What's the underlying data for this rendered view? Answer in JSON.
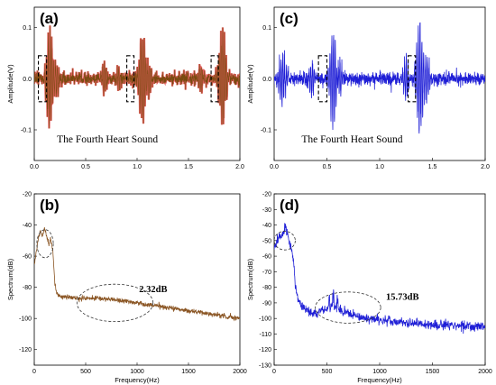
{
  "chart_data": [
    {
      "id": "a",
      "type": "line",
      "panel_label": "(a)",
      "xlabel": "",
      "ylabel": "Amplitude(V)",
      "xlim": [
        0,
        2.0
      ],
      "ylim": [
        -0.16,
        0.14
      ],
      "xticks": [
        0,
        0.5,
        1.0,
        1.5,
        2.0
      ],
      "xtick_labels": [
        "0.0",
        "0.5",
        "1.0",
        "1.5",
        "2.0"
      ],
      "yticks": [
        -0.1,
        0,
        0.1
      ],
      "ytick_labels": [
        "-0.1",
        "0.0",
        "0.1"
      ],
      "color": "#d81e1e",
      "color2": "#7a4a10",
      "annotation": "The Fourth Heart Sound",
      "beats": [
        {
          "t": 0.15,
          "amp": 0.115,
          "width": 0.04
        },
        {
          "t": 0.22,
          "amp": 0.035,
          "width": 0.025
        },
        {
          "t": 0.68,
          "amp": 0.045,
          "width": 0.025
        },
        {
          "t": 0.82,
          "amp": 0.03,
          "width": 0.02
        },
        {
          "t": 1.05,
          "amp": 0.1,
          "width": 0.04
        },
        {
          "t": 1.12,
          "amp": 0.035,
          "width": 0.025
        },
        {
          "t": 1.62,
          "amp": 0.035,
          "width": 0.025
        },
        {
          "t": 1.83,
          "amp": 0.115,
          "width": 0.04
        }
      ],
      "s4_boxes": [
        [
          0.04,
          0.12
        ],
        [
          0.9,
          0.97
        ],
        [
          1.72,
          1.79
        ]
      ]
    },
    {
      "id": "c",
      "type": "line",
      "panel_label": "(c)",
      "xlabel": "",
      "ylabel": "Amplitude(V)",
      "xlim": [
        0,
        2.0
      ],
      "ylim": [
        -0.16,
        0.14
      ],
      "xticks": [
        0,
        0.5,
        1.0,
        1.5,
        2.0
      ],
      "xtick_labels": [
        "0.0",
        "0.5",
        "1.0",
        "1.5",
        "2.0"
      ],
      "yticks": [
        -0.1,
        0,
        0.1
      ],
      "ytick_labels": [
        "-0.1",
        "0.0",
        "0.1"
      ],
      "color": "#1f1fd6",
      "annotation": "The Fourth Heart Sound",
      "beats": [
        {
          "t": 0.08,
          "amp": 0.06,
          "width": 0.04
        },
        {
          "t": 0.36,
          "amp": 0.045,
          "width": 0.025
        },
        {
          "t": 0.56,
          "amp": 0.115,
          "width": 0.04
        },
        {
          "t": 0.62,
          "amp": 0.05,
          "width": 0.03
        },
        {
          "t": 1.25,
          "amp": 0.05,
          "width": 0.03
        },
        {
          "t": 1.38,
          "amp": 0.125,
          "width": 0.04
        },
        {
          "t": 1.45,
          "amp": 0.05,
          "width": 0.03
        }
      ],
      "s4_boxes": [
        [
          0.42,
          0.5
        ],
        [
          1.27,
          1.34
        ]
      ]
    },
    {
      "id": "b",
      "type": "line",
      "panel_label": "(b)",
      "xlabel": "Frequency(Hz)",
      "ylabel": "Spectrum(dB)",
      "xlim": [
        0,
        2000
      ],
      "ylim": [
        -130,
        -20
      ],
      "xticks": [
        0,
        500,
        1000,
        1500,
        2000
      ],
      "xtick_labels": [
        "0",
        "500",
        "1000",
        "1500",
        "2000"
      ],
      "yticks": [
        -120,
        -100,
        -80,
        -60,
        -40,
        -20
      ],
      "ytick_labels": [
        "-120",
        "-100",
        "-80",
        "-60",
        "-40",
        "-20"
      ],
      "color": "#8a5523",
      "annotation": "2.32dB",
      "curve": [
        [
          0,
          -65
        ],
        [
          20,
          -58
        ],
        [
          40,
          -48
        ],
        [
          60,
          -44
        ],
        [
          80,
          -47
        ],
        [
          100,
          -41
        ],
        [
          120,
          -47
        ],
        [
          140,
          -52
        ],
        [
          160,
          -49
        ],
        [
          180,
          -56
        ],
        [
          200,
          -78
        ],
        [
          220,
          -84
        ],
        [
          260,
          -86
        ],
        [
          300,
          -86
        ],
        [
          400,
          -87
        ],
        [
          500,
          -87
        ],
        [
          600,
          -87
        ],
        [
          700,
          -87.5
        ],
        [
          800,
          -88
        ],
        [
          900,
          -89
        ],
        [
          1000,
          -90
        ],
        [
          1100,
          -91
        ],
        [
          1200,
          -92
        ],
        [
          1300,
          -93
        ],
        [
          1400,
          -94
        ],
        [
          1500,
          -95
        ],
        [
          1600,
          -96
        ],
        [
          1700,
          -97
        ],
        [
          1800,
          -98
        ],
        [
          1900,
          -99
        ],
        [
          2000,
          -100
        ]
      ],
      "noise": 0.8,
      "ellipses": [
        {
          "cx": 105,
          "cy": -52,
          "rx": 80,
          "ry": 9
        },
        {
          "cx": 785,
          "cy": -90,
          "rx": 370,
          "ry": 12
        }
      ],
      "label_pos": [
        1020,
        -83
      ]
    },
    {
      "id": "d",
      "type": "line",
      "panel_label": "(d)",
      "xlabel": "Frequency(Hz)",
      "ylabel": "Spectrum(dB)",
      "xlim": [
        0,
        2000
      ],
      "ylim": [
        -130,
        -20
      ],
      "xticks": [
        0,
        500,
        1000,
        1500,
        2000
      ],
      "xtick_labels": [
        "0",
        "500",
        "1000",
        "1500",
        "2000"
      ],
      "yticks": [
        -130,
        -120,
        -110,
        -100,
        -90,
        -80,
        -70,
        -60,
        -50,
        -40,
        -30,
        -20
      ],
      "ytick_labels": [
        "-130",
        "-120",
        "-110",
        "-100",
        "-90",
        "-80",
        "-70",
        "-60",
        "-50",
        "-40",
        "-30",
        "-20"
      ],
      "color": "#1f1fd6",
      "annotation": "15.73dB",
      "curve": [
        [
          0,
          -55
        ],
        [
          30,
          -50
        ],
        [
          60,
          -47
        ],
        [
          90,
          -45
        ],
        [
          110,
          -40
        ],
        [
          130,
          -47
        ],
        [
          160,
          -55
        ],
        [
          180,
          -62
        ],
        [
          200,
          -78
        ],
        [
          230,
          -88
        ],
        [
          260,
          -92
        ],
        [
          300,
          -94
        ],
        [
          350,
          -96
        ],
        [
          400,
          -97
        ],
        [
          450,
          -95
        ],
        [
          500,
          -94
        ],
        [
          550,
          -92
        ],
        [
          600,
          -93
        ],
        [
          650,
          -95
        ],
        [
          700,
          -97
        ],
        [
          800,
          -99
        ],
        [
          900,
          -100
        ],
        [
          1000,
          -101
        ],
        [
          1100,
          -102
        ],
        [
          1200,
          -102.5
        ],
        [
          1300,
          -103
        ],
        [
          1400,
          -103.5
        ],
        [
          1500,
          -104
        ],
        [
          1600,
          -104
        ],
        [
          1700,
          -104.5
        ],
        [
          1800,
          -105
        ],
        [
          1900,
          -105.5
        ],
        [
          2000,
          -106
        ]
      ],
      "noise": 1.6,
      "spikes": [
        [
          520,
          8
        ],
        [
          560,
          10
        ],
        [
          600,
          7
        ],
        [
          1090,
          5
        ],
        [
          1580,
          3
        ],
        [
          1850,
          3
        ]
      ],
      "ellipses": [
        {
          "cx": 100,
          "cy": -50,
          "rx": 100,
          "ry": 6
        },
        {
          "cx": 700,
          "cy": -93,
          "rx": 310,
          "ry": 10
        }
      ],
      "label_pos": [
        1060,
        -88
      ]
    }
  ]
}
